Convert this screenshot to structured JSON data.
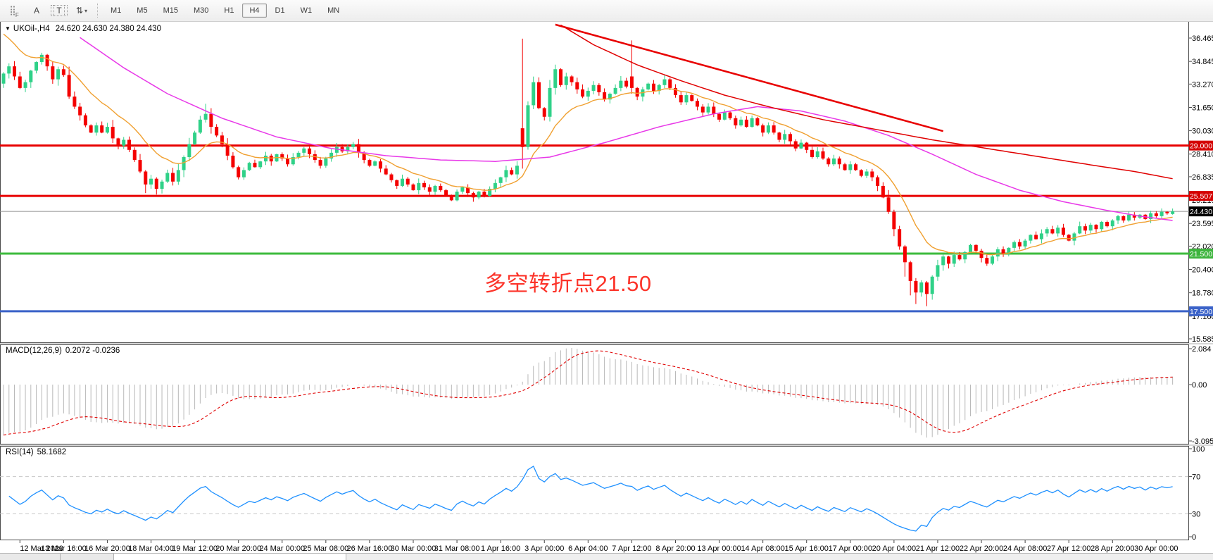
{
  "toolbar": {
    "tools": [
      {
        "name": "grid-f-icon",
        "glyph": "⣿",
        "suffix": "F"
      },
      {
        "name": "text-cursor-icon",
        "glyph": "A",
        "suffix": ""
      },
      {
        "name": "text-box-icon",
        "glyph": "T",
        "suffix": ""
      },
      {
        "name": "indicator-arrows-icon",
        "glyph": "⇅",
        "suffix": "▾"
      }
    ],
    "timeframes": [
      {
        "label": "M1"
      },
      {
        "label": "M5"
      },
      {
        "label": "M15"
      },
      {
        "label": "M30"
      },
      {
        "label": "H1"
      },
      {
        "label": "H4"
      },
      {
        "label": "D1"
      },
      {
        "label": "W1"
      },
      {
        "label": "MN"
      }
    ],
    "active_timeframe": "H4"
  },
  "symbol_panel": {
    "dropdown_glyph": "▼",
    "symbol": "UKOil-,H4",
    "ohlc_text": "24.620 24.630 24.380 24.430"
  },
  "annotation": {
    "text": "多空转折点21.50",
    "color": "#fc342a"
  },
  "indicators": {
    "macd": {
      "label": "MACD(12,26,9)",
      "values": "0.2072 -0.0236",
      "axis_labels": [
        "2.084",
        "0.00",
        "-3.0957"
      ]
    },
    "rsi": {
      "label": "RSI(14)",
      "value": "58.1682",
      "axis_labels": [
        "100",
        "70",
        "30",
        "0"
      ],
      "levels": [
        70,
        30
      ]
    }
  },
  "chart_data": {
    "type": "candlestick",
    "symbol": "UKOil-",
    "timeframe": "H4",
    "title": "UKOil-,H4",
    "current_bar": {
      "open": 24.62,
      "high": 24.63,
      "low": 24.38,
      "close": 24.43
    },
    "ylim": [
      15.585,
      36.465
    ],
    "y_ticks": [
      36.465,
      34.845,
      33.27,
      31.65,
      30.03,
      28.41,
      26.835,
      25.215,
      23.595,
      22.02,
      20.4,
      18.78,
      17.16,
      15.585
    ],
    "x_labels": [
      "12 Mar 2020",
      "13 Mar 16:00",
      "16 Mar 20:00",
      "18 Mar 04:00",
      "19 Mar 12:00",
      "20 Mar 20:00",
      "24 Mar 00:00",
      "25 Mar 08:00",
      "26 Mar 16:00",
      "30 Mar 00:00",
      "31 Mar 08:00",
      "1 Apr 16:00",
      "3 Apr 00:00",
      "6 Apr 04:00",
      "7 Apr 12:00",
      "8 Apr 20:00",
      "13 Apr 00:00",
      "14 Apr 08:00",
      "15 Apr 16:00",
      "17 Apr 00:00",
      "20 Apr 04:00",
      "21 Apr 12:00",
      "22 Apr 20:00",
      "24 Apr 08:00",
      "27 Apr 12:00",
      "28 Apr 20:00",
      "30 Apr 00:00"
    ],
    "bars_per_label": 8,
    "first_label_bar": 3,
    "closes": [
      34.0,
      34.5,
      33.8,
      33.0,
      33.4,
      34.2,
      34.8,
      35.3,
      34.5,
      33.6,
      34.3,
      33.9,
      32.4,
      31.7,
      31.1,
      30.4,
      29.9,
      30.4,
      29.9,
      30.3,
      29.5,
      29.0,
      29.4,
      28.7,
      28.0,
      27.2,
      26.3,
      26.7,
      26.0,
      26.5,
      27.1,
      26.5,
      27.3,
      28.2,
      29.1,
      29.9,
      30.8,
      31.2,
      30.3,
      29.7,
      29.1,
      28.3,
      27.5,
      26.8,
      27.3,
      27.8,
      27.5,
      27.9,
      28.3,
      27.9,
      28.4,
      28.1,
      27.7,
      28.2,
      28.5,
      28.8,
      28.4,
      28.0,
      27.6,
      28.1,
      28.5,
      28.9,
      28.6,
      28.9,
      29.1,
      28.5,
      28.0,
      27.6,
      27.9,
      27.4,
      27.0,
      26.6,
      26.2,
      26.7,
      26.3,
      25.9,
      26.4,
      26.1,
      25.8,
      26.2,
      25.9,
      25.5,
      25.2,
      25.8,
      26.1,
      25.7,
      25.4,
      25.8,
      25.5,
      26.0,
      26.4,
      26.8,
      27.3,
      27.0,
      27.6,
      28.9,
      31.8,
      33.4,
      31.6,
      31.0,
      33.0,
      34.3,
      33.2,
      33.8,
      33.4,
      32.9,
      32.4,
      32.8,
      33.2,
      32.7,
      32.2,
      32.6,
      33.0,
      33.5,
      33.1,
      33.0,
      32.4,
      32.9,
      33.3,
      32.8,
      33.2,
      33.6,
      33.0,
      32.5,
      32.0,
      32.5,
      32.1,
      31.7,
      31.3,
      31.7,
      31.2,
      30.8,
      31.3,
      30.9,
      30.4,
      30.8,
      30.3,
      30.9,
      30.4,
      29.9,
      30.4,
      29.9,
      29.4,
      29.8,
      29.3,
      28.8,
      29.2,
      28.7,
      28.2,
      28.6,
      28.1,
      27.7,
      28.1,
      27.7,
      27.3,
      27.7,
      27.3,
      26.9,
      27.2,
      26.8,
      26.2,
      25.4,
      24.4,
      23.2,
      22.0,
      20.9,
      19.6,
      18.8,
      19.5,
      18.7,
      19.9,
      20.7,
      21.3,
      20.8,
      21.4,
      21.1,
      21.6,
      22.1,
      21.7,
      21.2,
      20.8,
      21.3,
      21.8,
      21.5,
      21.9,
      22.3,
      22.0,
      22.4,
      22.8,
      22.5,
      22.9,
      23.2,
      22.9,
      23.3,
      22.8,
      22.4,
      22.9,
      23.4,
      23.1,
      23.5,
      23.2,
      23.7,
      23.4,
      23.8,
      24.1,
      23.8,
      24.2,
      24.0,
      24.2,
      23.9,
      24.3,
      24.1,
      24.4,
      24.3,
      24.43
    ],
    "first_open": 33.3,
    "special_candles": {
      "26": [
        27.2,
        27.3,
        25.7,
        26.3
      ],
      "28": [
        26.7,
        26.8,
        25.6,
        26.0
      ],
      "37": [
        30.8,
        31.9,
        30.6,
        31.2
      ],
      "82": [
        25.5,
        25.6,
        25.15,
        25.2
      ],
      "86": [
        25.7,
        25.8,
        25.1,
        25.4
      ],
      "95": [
        30.2,
        36.42,
        27.4,
        28.9
      ],
      "115": [
        33.8,
        36.3,
        32.6,
        33.0
      ],
      "165": [
        22.0,
        22.1,
        19.9,
        20.9
      ],
      "166": [
        20.9,
        21.0,
        18.6,
        19.6
      ],
      "167": [
        19.6,
        19.8,
        18.0,
        18.8
      ],
      "169": [
        19.5,
        19.6,
        17.85,
        18.7
      ],
      "170": [
        18.7,
        20.0,
        18.3,
        19.9
      ],
      "214": [
        24.25,
        24.63,
        24.2,
        24.43
      ]
    },
    "hlines": [
      {
        "price": 29.0,
        "label": "29.000",
        "color": "#e80000",
        "width": 3,
        "label_bg": "#d40000"
      },
      {
        "price": 25.507,
        "label": "25.507",
        "color": "#e80000",
        "width": 3,
        "label_bg": "#d40000"
      },
      {
        "price": 24.43,
        "label": "24.430",
        "color": "#909090",
        "width": 1,
        "label_bg": "#000000"
      },
      {
        "price": 21.5,
        "label": "21.500",
        "color": "#3dbb3d",
        "width": 3,
        "label_bg": "#3db43d"
      },
      {
        "price": 17.5,
        "label": "17.500",
        "color": "#3a62c8",
        "width": 3,
        "label_bg": "#3a62c8"
      }
    ],
    "trendline": {
      "bar1": 101,
      "price1": 37.4,
      "bar2": 172,
      "price2": 30.0,
      "color": "#e80000",
      "width": 2.5
    },
    "moving_averages": {
      "orange": {
        "type": "ema",
        "period": 13,
        "seed": 37.2,
        "color": "#f0a030"
      },
      "magenta": {
        "color": "#e838e8",
        "anchors": [
          [
            14,
            36.5
          ],
          [
            22,
            34.4
          ],
          [
            30,
            32.6
          ],
          [
            40,
            30.9
          ],
          [
            50,
            29.6
          ],
          [
            60,
            28.8
          ],
          [
            70,
            28.3
          ],
          [
            80,
            28.0
          ],
          [
            90,
            27.9
          ],
          [
            100,
            28.2
          ],
          [
            110,
            29.2
          ],
          [
            120,
            30.3
          ],
          [
            130,
            31.2
          ],
          [
            138,
            31.7
          ],
          [
            146,
            31.4
          ],
          [
            154,
            30.7
          ],
          [
            162,
            29.7
          ],
          [
            170,
            28.4
          ],
          [
            178,
            27.0
          ],
          [
            186,
            25.9
          ],
          [
            194,
            25.1
          ],
          [
            202,
            24.5
          ],
          [
            208,
            24.1
          ],
          [
            214,
            23.8
          ]
        ]
      },
      "red": {
        "color": "#e00000",
        "anchors": [
          [
            101,
            37.6
          ],
          [
            108,
            36.0
          ],
          [
            116,
            34.6
          ],
          [
            124,
            33.5
          ],
          [
            132,
            32.5
          ],
          [
            140,
            31.7
          ],
          [
            150,
            30.8
          ],
          [
            160,
            30.1
          ],
          [
            170,
            29.4
          ],
          [
            180,
            28.8
          ],
          [
            190,
            28.2
          ],
          [
            200,
            27.6
          ],
          [
            207,
            27.2
          ],
          [
            214,
            26.7
          ]
        ]
      }
    },
    "macd": {
      "fast": 12,
      "slow": 26,
      "signal": 9,
      "seed_fast": 35.8,
      "seed_slow": 38.4,
      "hist_color": "#b8b8b8",
      "signal_color": "#e00000",
      "axis_max": 2.084,
      "axis_min": -3.0957
    },
    "rsi": {
      "period": 14,
      "line_color": "#1e90ff",
      "level_color": "#c8c8c8"
    },
    "colors": {
      "up": "#2fd188",
      "down": "#f40000",
      "background": "#ffffff",
      "border": "#4a4a4a"
    }
  },
  "status_bar": {
    "segments": [
      "",
      "",
      ""
    ]
  }
}
